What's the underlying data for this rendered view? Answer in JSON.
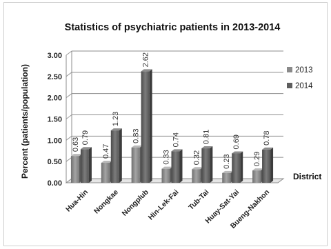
{
  "chart_data": {
    "type": "bar",
    "title": "Statistics  of psychiatric patients in 2013-2014",
    "ylabel": "Percent (patients/population)",
    "xlabel": "District",
    "ylim": [
      0,
      3.0
    ],
    "yticks": [
      "0.00",
      "0.50",
      "1.00",
      "1.50",
      "2.00",
      "2.50",
      "3.00"
    ],
    "categories": [
      "Hua-Hin",
      "Nongkae",
      "Nongplub",
      "Hin-Lek-Fai",
      "Tub-Tai",
      "Huay-Sat-Yai",
      "Bueng-Nakhon"
    ],
    "series": [
      {
        "name": "2013",
        "values": [
          0.63,
          0.47,
          0.83,
          0.33,
          0.32,
          0.23,
          0.29
        ],
        "labels": [
          "0.63",
          "0.47",
          "0.83",
          "0.33",
          "0.32",
          "0.23",
          "0.29"
        ],
        "color": "#8a8a8a"
      },
      {
        "name": "2014",
        "values": [
          0.79,
          1.23,
          2.62,
          0.74,
          0.81,
          0.69,
          0.78
        ],
        "labels": [
          "0.79",
          "1.23",
          "2.62",
          "0.74",
          "0.81",
          "0.69",
          "0.78"
        ],
        "color": "#5e5e5e"
      }
    ],
    "grid": true,
    "legend": "right"
  }
}
